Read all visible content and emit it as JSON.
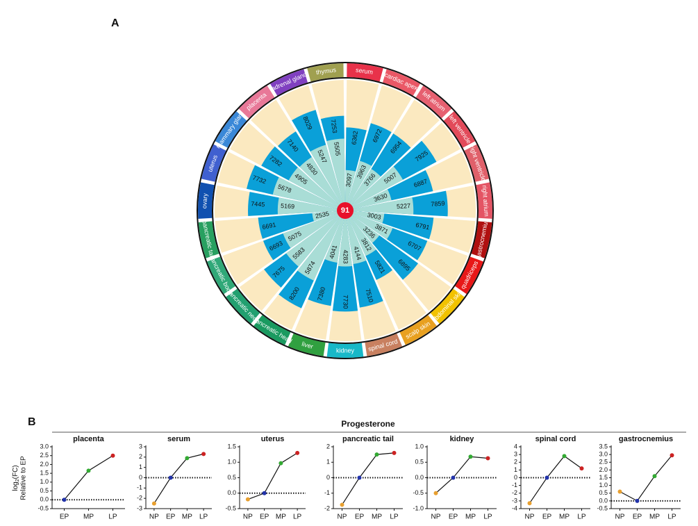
{
  "labels": [
    "A",
    "B"
  ],
  "group_title": "Progesterone",
  "ylabel": {
    "main": "log",
    "sub": "2",
    "rest": "(FC)",
    "line2": "Relative to EP"
  },
  "reference_y": 0,
  "chart_data": [
    {
      "type": "radial_bar",
      "center_label": "91",
      "categories": [
        "serum",
        "cardiac apex",
        "left atrium",
        "left ventricle",
        "right ventricle",
        "right atrium",
        "gastrocnemius",
        "quadriceps",
        "abdominal skin",
        "scalp skin",
        "spinal cord",
        "kidney",
        "liver",
        "pancreatic head",
        "pancreatic neck",
        "pancreatic body",
        "pancreatic tail",
        "ovary",
        "uterus",
        "mammary gland",
        "placenta",
        "adrenal gland",
        "thymus"
      ],
      "series": [
        {
          "color": "#0aa0d8",
          "values": [
            6362,
            6972,
            6954,
            7925,
            6887,
            7859,
            6791,
            6707,
            6895,
            5821,
            7510,
            7730,
            7380,
            8200,
            7675,
            6693,
            6691,
            7445,
            7732,
            7282,
            7140,
            8029,
            7253
          ]
        },
        {
          "color": "#a9ddd6",
          "values": [
            3097,
            3963,
            3766,
            5007,
            3630,
            5227,
            3003,
            3871,
            3236,
            3812,
            4144,
            4283,
            4041,
            5874,
            5583,
            5075,
            2535,
            5169,
            5678,
            4905,
            4830,
            5247,
            5505
          ]
        }
      ],
      "ring_colors": [
        "#e8324a",
        "#ea5866",
        "#e66070",
        "#e24a5a",
        "#e0606a",
        "#e45464",
        "#b01010",
        "#e81818",
        "#f2c200",
        "#e8a020",
        "#c88060",
        "#18b8c8",
        "#30a040",
        "#1a9a60",
        "#22a070",
        "#30a878",
        "#28a060",
        "#1050b0",
        "#4060d0",
        "#3a88d8",
        "#e87898",
        "#8040c0",
        "#a0a050"
      ],
      "background": "#fbe9c0",
      "center_color": "#e8102a",
      "rlim": [
        0,
        10000
      ]
    },
    {
      "type": "line",
      "title": "placenta",
      "categories": [
        "EP",
        "MP",
        "LP"
      ],
      "values": [
        0,
        1.65,
        2.5
      ],
      "colors": [
        "#2233aa",
        "#33aa33",
        "#cc2222"
      ],
      "ylim": [
        -0.5,
        3.0
      ],
      "yticks": [
        -0.5,
        {
          "value": 0,
          "label": "0.0"
        },
        0.5,
        {
          "value": 1,
          "label": "1.0"
        },
        1.5,
        {
          "value": 2,
          "label": "2.0"
        },
        2.5,
        {
          "value": 3,
          "label": "3.0"
        }
      ]
    },
    {
      "type": "line",
      "title": "serum",
      "categories": [
        "NP",
        "EP",
        "MP",
        "LP"
      ],
      "values": [
        -2.5,
        0,
        1.9,
        2.3
      ],
      "colors": [
        "#e8a030",
        "#2233aa",
        "#33aa33",
        "#cc2222"
      ],
      "ylim": [
        -3,
        3
      ],
      "yticks": [
        -3,
        -2,
        -1,
        0,
        1,
        2,
        3
      ]
    },
    {
      "type": "line",
      "title": "uterus",
      "categories": [
        "NP",
        "EP",
        "MP",
        "LP"
      ],
      "values": [
        -0.2,
        0,
        0.97,
        1.3
      ],
      "colors": [
        "#e8a030",
        "#2233aa",
        "#33aa33",
        "#cc2222"
      ],
      "ylim": [
        -0.5,
        1.5
      ],
      "yticks": [
        -0.5,
        {
          "value": 0,
          "label": "0.0"
        },
        0.5,
        {
          "value": 1,
          "label": "1.0"
        },
        1.5
      ]
    },
    {
      "type": "line",
      "title": "pancreatic tail",
      "categories": [
        "NP",
        "EP",
        "MP",
        "LP"
      ],
      "values": [
        -1.75,
        0,
        1.5,
        1.6
      ],
      "colors": [
        "#e8a030",
        "#2233aa",
        "#33aa33",
        "#cc2222"
      ],
      "ylim": [
        -2,
        2
      ],
      "yticks": [
        -2,
        -1,
        0,
        1,
        2
      ]
    },
    {
      "type": "line",
      "title": "kidney",
      "categories": [
        "NP",
        "EP",
        "MP",
        "LP"
      ],
      "values": [
        -0.5,
        0,
        0.68,
        0.63
      ],
      "colors": [
        "#e8a030",
        "#2233aa",
        "#33aa33",
        "#cc2222"
      ],
      "ylim": [
        -1,
        1
      ],
      "yticks": [
        {
          "value": -1,
          "label": "-1.0"
        },
        -0.5,
        {
          "value": 0,
          "label": "0.0"
        },
        0.5,
        {
          "value": 1,
          "label": "1.0"
        }
      ]
    },
    {
      "type": "line",
      "title": "spinal cord",
      "categories": [
        "NP",
        "EP",
        "MP",
        "LP"
      ],
      "values": [
        -3.3,
        0,
        2.8,
        1.2
      ],
      "colors": [
        "#e8a030",
        "#2233aa",
        "#33aa33",
        "#cc2222"
      ],
      "ylim": [
        -4,
        4
      ],
      "yticks": [
        -4,
        -3,
        -2,
        -1,
        0,
        1,
        2,
        3,
        4
      ]
    },
    {
      "type": "line",
      "title": "gastrocnemius",
      "categories": [
        "NP",
        "EP",
        "MP",
        "LP"
      ],
      "values": [
        0.6,
        0,
        1.6,
        2.95
      ],
      "colors": [
        "#e8a030",
        "#2233aa",
        "#33aa33",
        "#cc2222"
      ],
      "ylim": [
        -0.5,
        3.5
      ],
      "yticks": [
        -0.5,
        {
          "value": 0,
          "label": "0.0"
        },
        0.5,
        {
          "value": 1,
          "label": "1.0"
        },
        1.5,
        {
          "value": 2,
          "label": "2.0"
        },
        2.5,
        {
          "value": 3,
          "label": "3.0"
        },
        3.5
      ]
    }
  ]
}
